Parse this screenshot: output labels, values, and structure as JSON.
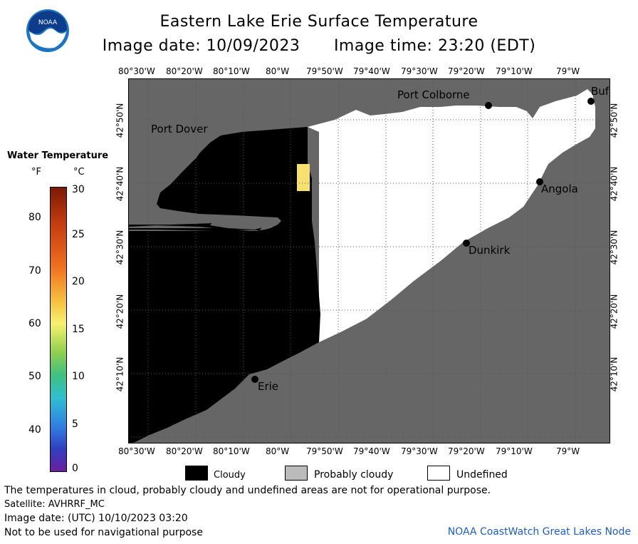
{
  "header": {
    "title": "Eastern Lake Erie Surface Temperature",
    "image_date": "Image date: 10/09/2023",
    "image_time": "Image time: 23:20 (EDT)"
  },
  "logo": {
    "text": "NOAA"
  },
  "map": {
    "lon_labels": [
      "80°30'W",
      "80°20'W",
      "80°10'W",
      "80°W",
      "79°50'W",
      "79°40'W",
      "79°30'W",
      "79°20'W",
      "79°10'W",
      "79°W"
    ],
    "lat_labels": [
      "42°50'N",
      "42°40'N",
      "42°30'N",
      "42°20'N",
      "42°10'N"
    ],
    "places": {
      "port_colborne": "Port Colborne",
      "port_dover": "Port Dover",
      "buffalo": "Buf",
      "angola": "Angola",
      "dunkirk": "Dunkirk",
      "erie": "Erie"
    },
    "colors": {
      "land": "#666666",
      "cloud": "#000000",
      "undefined": "#ffffff",
      "warm_pixel": "#f5e070"
    }
  },
  "legend": {
    "title": "Water Temperature",
    "unit_f": "°F",
    "unit_c": "°C",
    "f_ticks": [
      "80",
      "70",
      "60",
      "50",
      "40"
    ],
    "c_ticks": [
      "30",
      "25",
      "20",
      "15",
      "10",
      "5",
      "0"
    ]
  },
  "key": {
    "cloudy": "Cloudy",
    "probably_cloudy": "Probably cloudy",
    "undefined": "Undefined"
  },
  "footer": {
    "line1": "The temperatures in cloud, probably cloudy and undefined areas are not for operational purpose.",
    "line2": "Satellite: AVHRRF_MC",
    "line3": "Image date: (UTC) 10/10/2023  03:20",
    "line4": "Not to be used for navigational purpose",
    "credit": "NOAA CoastWatch Great Lakes Node"
  }
}
